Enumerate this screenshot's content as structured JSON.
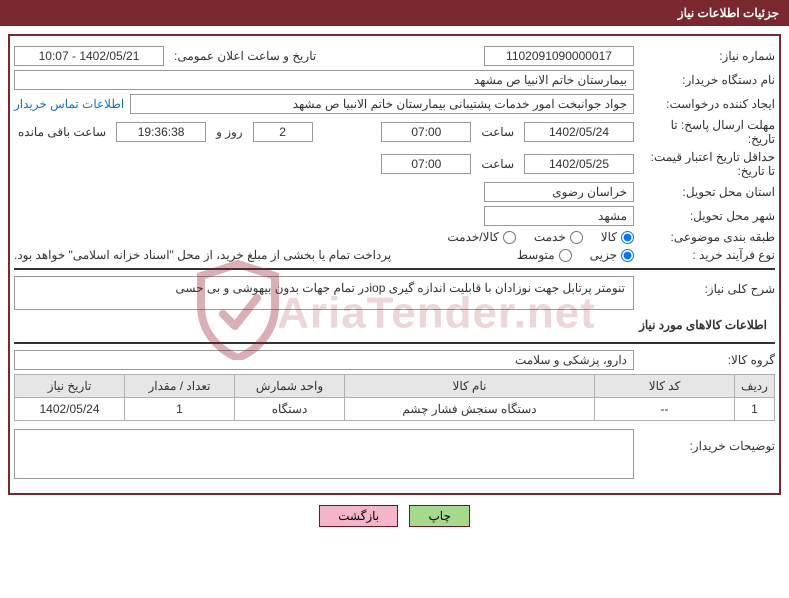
{
  "header": {
    "title": "جزئیات اطلاعات نیاز"
  },
  "fields": {
    "need_no_label": "شماره نیاز:",
    "need_no": "1102091090000017",
    "announce_label": "تاریخ و ساعت اعلان عمومی:",
    "announce": "1402/05/21 - 10:07",
    "buyer_org_label": "نام دستگاه خریدار:",
    "buyer_org": "بیمارستان خاتم الانبیا  ص  مشهد",
    "creator_label": "ایجاد کننده درخواست:",
    "creator": "جواد جوانبخت امور خدمات پشتیبانی بیمارستان خاتم الانبیا  ص  مشهد",
    "contact_link": "اطلاعات تماس خریدار",
    "reply_deadline_label": "مهلت ارسال پاسخ: تا تاریخ:",
    "reply_date": "1402/05/24",
    "time_label": "ساعت",
    "reply_time": "07:00",
    "days": "2",
    "days_and": "روز و",
    "countdown": "19:36:38",
    "remain_label": "ساعت باقی مانده",
    "validity_label": "حداقل تاریخ اعتبار قیمت: تا تاریخ:",
    "validity_date": "1402/05/25",
    "validity_time": "07:00",
    "province_label": "استان محل تحویل:",
    "province": "خراسان رضوی",
    "city_label": "شهر محل تحویل:",
    "city": "مشهد",
    "subject_class_label": "طبقه بندی موضوعی:",
    "subject_opts": {
      "goods": "کالا",
      "service": "خدمت",
      "both": "کالا/خدمت"
    },
    "purchase_type_label": "نوع فرآیند خرید :",
    "purchase_opts": {
      "minor": "جزیی",
      "medium": "متوسط"
    },
    "payment_note": "پرداخت تمام یا بخشی از مبلغ خرید، از محل \"اسناد خزانه اسلامی\" خواهد بود.",
    "overall_desc_label": "شرح کلی نیاز:",
    "overall_desc": "تنومتر پرتابل جهت نوزادان با قابلیت اندازه گیری iopدر تمام جهات بدون بیهوشی و بی حسی",
    "goods_info_title": "اطلاعات کالاهای مورد نیاز",
    "goods_group_label": "گروه کالا:",
    "goods_group": "دارو، پزشکی و سلامت",
    "buyer_notes_label": "توضیحات خریدار:"
  },
  "table": {
    "headers": {
      "idx": "ردیف",
      "code": "کد کالا",
      "name": "نام کالا",
      "unit": "واحد شمارش",
      "qty": "تعداد / مقدار",
      "date": "تاریخ نیاز"
    },
    "rows": [
      {
        "idx": "1",
        "code": "--",
        "name": "دستگاه سنجش فشار چشم",
        "unit": "دستگاه",
        "qty": "1",
        "date": "1402/05/24"
      }
    ]
  },
  "buttons": {
    "print": "چاپ",
    "back": "بازگشت"
  },
  "selected": {
    "subject": "goods",
    "purchase": "minor"
  },
  "colors": {
    "brand": "#7a2730",
    "link": "#1b6ec2",
    "btn_green": "#a5d98b",
    "btn_pink": "#f4b5c8",
    "table_header_bg": "#e6e6e6",
    "border": "#999999"
  },
  "watermark": "AriaTender.net"
}
